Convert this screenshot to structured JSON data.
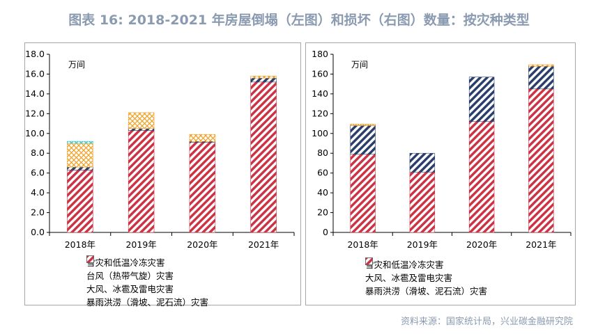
{
  "title": "图表 16: 2018-2021 年房屋倒塌（左图）和损坏（右图）数量：按灾种类型",
  "source": "资料来源：国家统计局，兴业碳金融研究院",
  "colors": {
    "rain": "#cc3344",
    "wind_ice": "#2b3f6b",
    "typhoon": "#f0a020",
    "snow": "#3cc0c0",
    "title": "#8a9ab0"
  },
  "chart_data": [
    {
      "type": "bar",
      "stacked": true,
      "unit_label": "万间",
      "categories": [
        "2018年",
        "2019年",
        "2020年",
        "2021年"
      ],
      "ylim": [
        0,
        18
      ],
      "yticks": [
        "0.0",
        "2.0",
        "4.0",
        "6.0",
        "8.0",
        "10.0",
        "12.0",
        "14.0",
        "16.0",
        "18.0"
      ],
      "series": [
        {
          "name": "暴雨洪涝（滑坡、泥石流）灾害",
          "key": "rain",
          "values": [
            6.3,
            10.3,
            9.1,
            15.2
          ]
        },
        {
          "name": "大风、冰雹及雷电灾害",
          "key": "wind_ice",
          "values": [
            0.3,
            0.2,
            0.1,
            0.4
          ]
        },
        {
          "name": "台风（热带气旋）灾害",
          "key": "typhoon",
          "values": [
            2.4,
            1.6,
            0.7,
            0.2
          ]
        },
        {
          "name": "雪灾和低温冷冻灾害",
          "key": "snow",
          "values": [
            0.2,
            0.0,
            0.0,
            0.0
          ]
        }
      ],
      "legend_order": [
        "snow",
        "typhoon",
        "wind_ice",
        "rain"
      ]
    },
    {
      "type": "bar",
      "stacked": true,
      "unit_label": "万间",
      "categories": [
        "2018年",
        "2019年",
        "2020年",
        "2021年"
      ],
      "ylim": [
        0,
        180
      ],
      "yticks": [
        "0",
        "20",
        "40",
        "60",
        "80",
        "100",
        "120",
        "140",
        "160",
        "180"
      ],
      "series": [
        {
          "name": "暴雨洪涝（滑坡、泥石流）灾害",
          "key": "rain",
          "values": [
            79,
            61,
            112,
            145
          ]
        },
        {
          "name": "大风、冰雹及雷电灾害",
          "key": "wind_ice",
          "values": [
            29,
            19,
            45,
            23
          ]
        },
        {
          "name": "雪灾和低温冷冻灾害",
          "key": "typhoon",
          "values": [
            1.5,
            0,
            0,
            1.5
          ]
        }
      ],
      "legend_order": [
        "typhoon",
        "wind_ice",
        "rain"
      ]
    }
  ]
}
